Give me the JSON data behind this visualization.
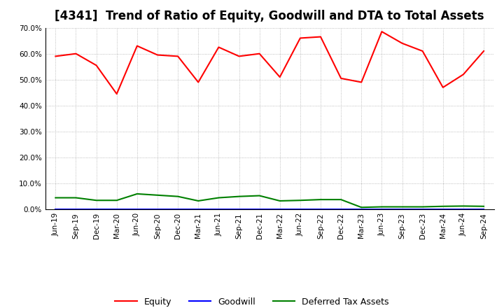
{
  "title": "[4341]  Trend of Ratio of Equity, Goodwill and DTA to Total Assets",
  "x_labels": [
    "Jun-19",
    "Sep-19",
    "Dec-19",
    "Mar-20",
    "Jun-20",
    "Sep-20",
    "Dec-20",
    "Mar-21",
    "Jun-21",
    "Sep-21",
    "Dec-21",
    "Mar-22",
    "Jun-22",
    "Sep-22",
    "Dec-22",
    "Mar-23",
    "Jun-23",
    "Sep-23",
    "Dec-23",
    "Mar-24",
    "Jun-24",
    "Sep-24"
  ],
  "equity": [
    0.59,
    0.6,
    0.555,
    0.445,
    0.63,
    0.595,
    0.59,
    0.49,
    0.625,
    0.59,
    0.6,
    0.51,
    0.66,
    0.665,
    0.505,
    0.49,
    0.685,
    0.64,
    0.61,
    0.47,
    0.52,
    0.61
  ],
  "goodwill": [
    0.0,
    0.0,
    0.0,
    0.0,
    0.0,
    0.0,
    0.0,
    0.0,
    0.0,
    0.0,
    0.0,
    0.0,
    0.0,
    0.0,
    0.0,
    0.0,
    0.0,
    0.0,
    0.0,
    0.0,
    0.0,
    0.0
  ],
  "dta": [
    0.045,
    0.045,
    0.035,
    0.035,
    0.06,
    0.055,
    0.05,
    0.033,
    0.045,
    0.05,
    0.053,
    0.033,
    0.035,
    0.038,
    0.038,
    0.008,
    0.01,
    0.01,
    0.01,
    0.012,
    0.013,
    0.012
  ],
  "equity_color": "#FF0000",
  "goodwill_color": "#0000FF",
  "dta_color": "#008000",
  "ylim": [
    0.0,
    0.7
  ],
  "yticks": [
    0.0,
    0.1,
    0.2,
    0.3,
    0.4,
    0.5,
    0.6,
    0.7
  ],
  "background_color": "#FFFFFF",
  "grid_color": "#AAAAAA",
  "title_fontsize": 12,
  "tick_fontsize": 7.5,
  "legend_labels": [
    "Equity",
    "Goodwill",
    "Deferred Tax Assets"
  ]
}
